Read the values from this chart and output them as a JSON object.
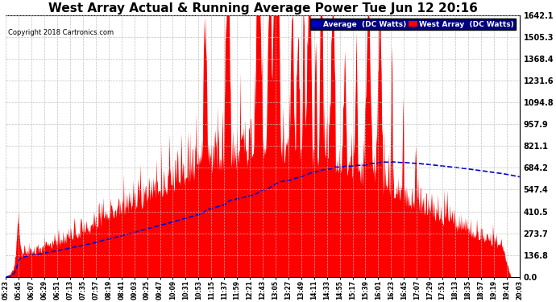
{
  "title": "West Array Actual & Running Average Power Tue Jun 12 20:16",
  "copyright": "Copyright 2018 Cartronics.com",
  "ylabel_right_ticks": [
    0.0,
    136.8,
    273.7,
    410.5,
    547.4,
    684.2,
    821.1,
    957.9,
    1094.8,
    1231.6,
    1368.4,
    1505.3,
    1642.1
  ],
  "ymax": 1642.1,
  "ymin": 0.0,
  "background_color": "#ffffff",
  "plot_bg_color": "#ffffff",
  "grid_color": "#bbbbbb",
  "fill_color": "#ff0000",
  "avg_line_color": "#0000cc",
  "title_color": "#000000",
  "title_fontsize": 11,
  "legend_avg_bg": "#0000cc",
  "legend_west_bg": "#ff0000",
  "x_labels": [
    "05:23",
    "05:45",
    "06:07",
    "06:29",
    "06:51",
    "07:13",
    "07:35",
    "07:57",
    "08:19",
    "08:41",
    "09:03",
    "09:25",
    "09:47",
    "10:09",
    "10:31",
    "10:53",
    "11:15",
    "11:37",
    "11:59",
    "12:21",
    "12:43",
    "13:05",
    "13:27",
    "13:49",
    "14:11",
    "14:33",
    "14:55",
    "15:17",
    "15:39",
    "16:01",
    "16:23",
    "16:45",
    "17:07",
    "17:29",
    "17:51",
    "18:13",
    "18:35",
    "18:57",
    "19:19",
    "19:41",
    "20:03"
  ]
}
